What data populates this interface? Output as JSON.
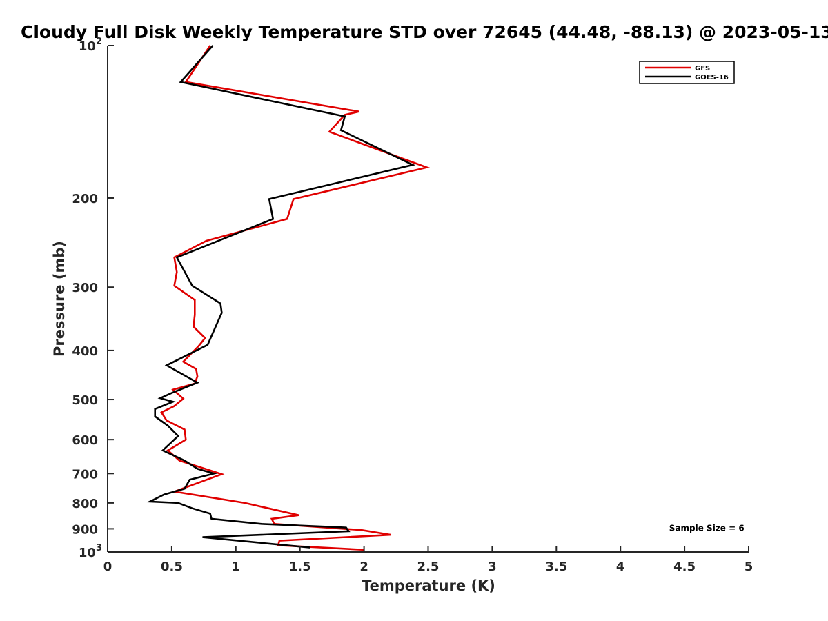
{
  "chart_data": {
    "type": "line",
    "title": "Cloudy Full Disk Weekly Temperature STD over 72645 (44.48, -88.13) @ 2023-05-13",
    "xlabel": "Temperature (K)",
    "ylabel": "Pressure (mb)",
    "xlim": [
      0,
      5
    ],
    "ylim": [
      100,
      1000
    ],
    "y_scale": "log",
    "y_reversed": true,
    "grid": false,
    "x_ticks": [
      0,
      0.5,
      1,
      1.5,
      2,
      2.5,
      3,
      3.5,
      4,
      4.5,
      5
    ],
    "x_tick_labels": [
      "0",
      "0.5",
      "1",
      "1.5",
      "2",
      "2.5",
      "3",
      "3.5",
      "4",
      "4.5",
      "5"
    ],
    "y_ticks": [
      {
        "value": 100,
        "base": "10",
        "exp": "2"
      },
      {
        "value": 200,
        "label": "200"
      },
      {
        "value": 300,
        "label": "300"
      },
      {
        "value": 400,
        "label": "400"
      },
      {
        "value": 500,
        "label": "500"
      },
      {
        "value": 600,
        "label": "600"
      },
      {
        "value": 700,
        "label": "700"
      },
      {
        "value": 800,
        "label": "800"
      },
      {
        "value": 900,
        "label": "900"
      },
      {
        "value": 1000,
        "base": "10",
        "exp": "3"
      }
    ],
    "legend_position": "top-right",
    "series": [
      {
        "name": "GFS",
        "color": "#e00000",
        "points": [
          [
            0.8,
            100
          ],
          [
            0.61,
            118
          ],
          [
            1.96,
            135
          ],
          [
            1.85,
            137
          ],
          [
            1.73,
            148
          ],
          [
            2.49,
            174
          ],
          [
            1.45,
            201
          ],
          [
            1.4,
            220
          ],
          [
            0.77,
            243
          ],
          [
            0.52,
            262
          ],
          [
            0.54,
            280
          ],
          [
            0.52,
            298
          ],
          [
            0.68,
            318
          ],
          [
            0.68,
            340
          ],
          [
            0.67,
            359
          ],
          [
            0.76,
            378
          ],
          [
            0.71,
            392
          ],
          [
            0.59,
            421
          ],
          [
            0.69,
            435
          ],
          [
            0.7,
            450
          ],
          [
            0.68,
            465
          ],
          [
            0.51,
            478
          ],
          [
            0.59,
            498
          ],
          [
            0.52,
            515
          ],
          [
            0.42,
            530
          ],
          [
            0.46,
            550
          ],
          [
            0.6,
            573
          ],
          [
            0.61,
            600
          ],
          [
            0.47,
            630
          ],
          [
            0.56,
            660
          ],
          [
            0.89,
            702
          ],
          [
            0.52,
            760
          ],
          [
            1.07,
            800
          ],
          [
            1.49,
            846
          ],
          [
            1.28,
            860
          ],
          [
            1.3,
            880
          ],
          [
            1.98,
            905
          ],
          [
            2.21,
            925
          ],
          [
            1.34,
            950
          ],
          [
            1.33,
            970
          ],
          [
            2.0,
            990
          ]
        ]
      },
      {
        "name": "GOES-16",
        "color": "#000000",
        "points": [
          [
            0.82,
            100
          ],
          [
            0.57,
            118
          ],
          [
            1.85,
            138
          ],
          [
            1.82,
            147
          ],
          [
            2.38,
            172
          ],
          [
            1.26,
            201
          ],
          [
            1.29,
            220
          ],
          [
            0.54,
            262
          ],
          [
            0.66,
            298
          ],
          [
            0.88,
            323
          ],
          [
            0.89,
            337
          ],
          [
            0.78,
            390
          ],
          [
            0.46,
            428
          ],
          [
            0.7,
            463
          ],
          [
            0.51,
            484
          ],
          [
            0.41,
            497
          ],
          [
            0.51,
            505
          ],
          [
            0.37,
            522
          ],
          [
            0.37,
            540
          ],
          [
            0.47,
            563
          ],
          [
            0.55,
            590
          ],
          [
            0.43,
            630
          ],
          [
            0.6,
            660
          ],
          [
            0.7,
            685
          ],
          [
            0.83,
            700
          ],
          [
            0.64,
            720
          ],
          [
            0.6,
            750
          ],
          [
            0.44,
            770
          ],
          [
            0.33,
            795
          ],
          [
            0.55,
            800
          ],
          [
            0.66,
            820
          ],
          [
            0.8,
            840
          ],
          [
            0.81,
            860
          ],
          [
            1.2,
            880
          ],
          [
            1.86,
            895
          ],
          [
            1.88,
            910
          ],
          [
            0.74,
            935
          ],
          [
            1.58,
            980
          ]
        ]
      }
    ],
    "annotations": [
      {
        "text": "Sample Size = 6",
        "x": 4.38,
        "y": 895
      }
    ]
  }
}
